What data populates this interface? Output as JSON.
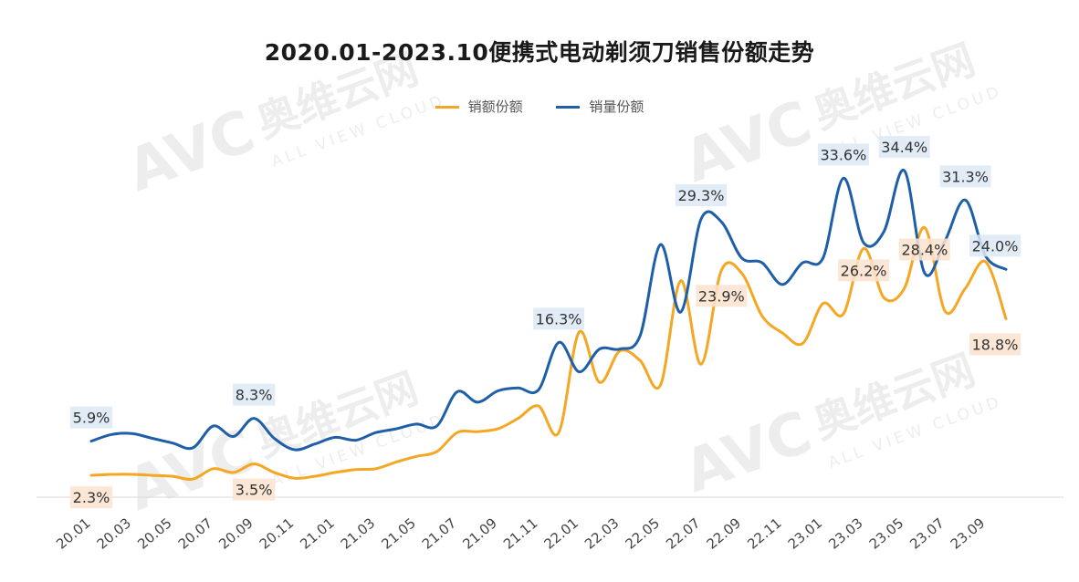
{
  "colors": {
    "sales_amount": "#f5a623",
    "sales_volume": "#1f5fa8",
    "label_bg_amount": "#fbe3cf",
    "label_bg_volume": "#dce9f6"
  },
  "watermark": {
    "brand": "奥维云网",
    "sub": "ALL VIEW CLOUD",
    "logo": "AVC"
  },
  "chart_data": {
    "type": "line",
    "title": "2020.01-2023.10便携式电动剃须刀销售份额走势",
    "legend": [
      "销额份额",
      "销量份额"
    ],
    "legend_position": "top-center",
    "y_axis_visible": false,
    "ylim": [
      0,
      37
    ],
    "x": [
      "20.01",
      "20.02",
      "20.03",
      "20.04",
      "20.05",
      "20.06",
      "20.07",
      "20.08",
      "20.09",
      "20.10",
      "20.11",
      "20.12",
      "21.01",
      "21.02",
      "21.03",
      "21.04",
      "21.05",
      "21.06",
      "21.07",
      "21.08",
      "21.09",
      "21.10",
      "21.11",
      "21.12",
      "22.01",
      "22.02",
      "22.03",
      "22.04",
      "22.05",
      "22.06",
      "22.07",
      "22.08",
      "22.09",
      "22.10",
      "22.11",
      "22.12",
      "23.01",
      "23.02",
      "23.03",
      "23.04",
      "23.05",
      "23.06",
      "23.07",
      "23.08",
      "23.09",
      "23.10"
    ],
    "tick_labels": [
      "20.01",
      "20.03",
      "20.05",
      "20.07",
      "20.09",
      "20.11",
      "21.01",
      "21.03",
      "21.05",
      "21.07",
      "21.09",
      "21.11",
      "22.01",
      "22.03",
      "22.05",
      "22.07",
      "22.09",
      "22.11",
      "23.01",
      "23.03",
      "23.05",
      "23.07",
      "23.09"
    ],
    "series": [
      {
        "name": "销额份额",
        "key": "sales_amount",
        "values": [
          2.3,
          2.4,
          2.4,
          2.3,
          2.2,
          1.9,
          3.0,
          2.6,
          3.5,
          2.6,
          2.0,
          2.2,
          2.6,
          2.9,
          3.0,
          3.7,
          4.3,
          4.8,
          6.8,
          6.9,
          7.2,
          8.3,
          9.6,
          6.8,
          17.4,
          12.1,
          15.4,
          14.4,
          11.8,
          22.8,
          14.0,
          23.9,
          23.6,
          19.1,
          17.3,
          16.2,
          20.4,
          19.3,
          26.2,
          21.0,
          22.0,
          28.4,
          19.6,
          22.0,
          24.8,
          18.8
        ],
        "labels": {
          "0": "2.3%",
          "8": "3.5%",
          "31": "23.9%",
          "38": "26.2%",
          "41": "28.4%",
          "45": "18.8%"
        }
      },
      {
        "name": "销量份额",
        "key": "sales_volume",
        "values": [
          5.9,
          6.6,
          6.7,
          6.2,
          5.7,
          5.2,
          7.5,
          6.4,
          8.3,
          6.2,
          5.0,
          5.6,
          6.3,
          6.0,
          6.8,
          7.2,
          7.7,
          7.5,
          11.1,
          10.0,
          11.2,
          11.5,
          11.3,
          16.3,
          13.2,
          15.6,
          15.6,
          17.0,
          26.6,
          19.5,
          29.3,
          29.0,
          25.2,
          24.7,
          22.4,
          24.7,
          25.2,
          33.6,
          26.8,
          28.0,
          34.4,
          23.6,
          27.0,
          31.3,
          25.4,
          24.0
        ],
        "labels": {
          "0": "5.9%",
          "8": "8.3%",
          "23": "16.3%",
          "30": "29.3%",
          "37": "33.6%",
          "40": "34.4%",
          "43": "31.3%",
          "45": "24.0%"
        }
      }
    ]
  }
}
